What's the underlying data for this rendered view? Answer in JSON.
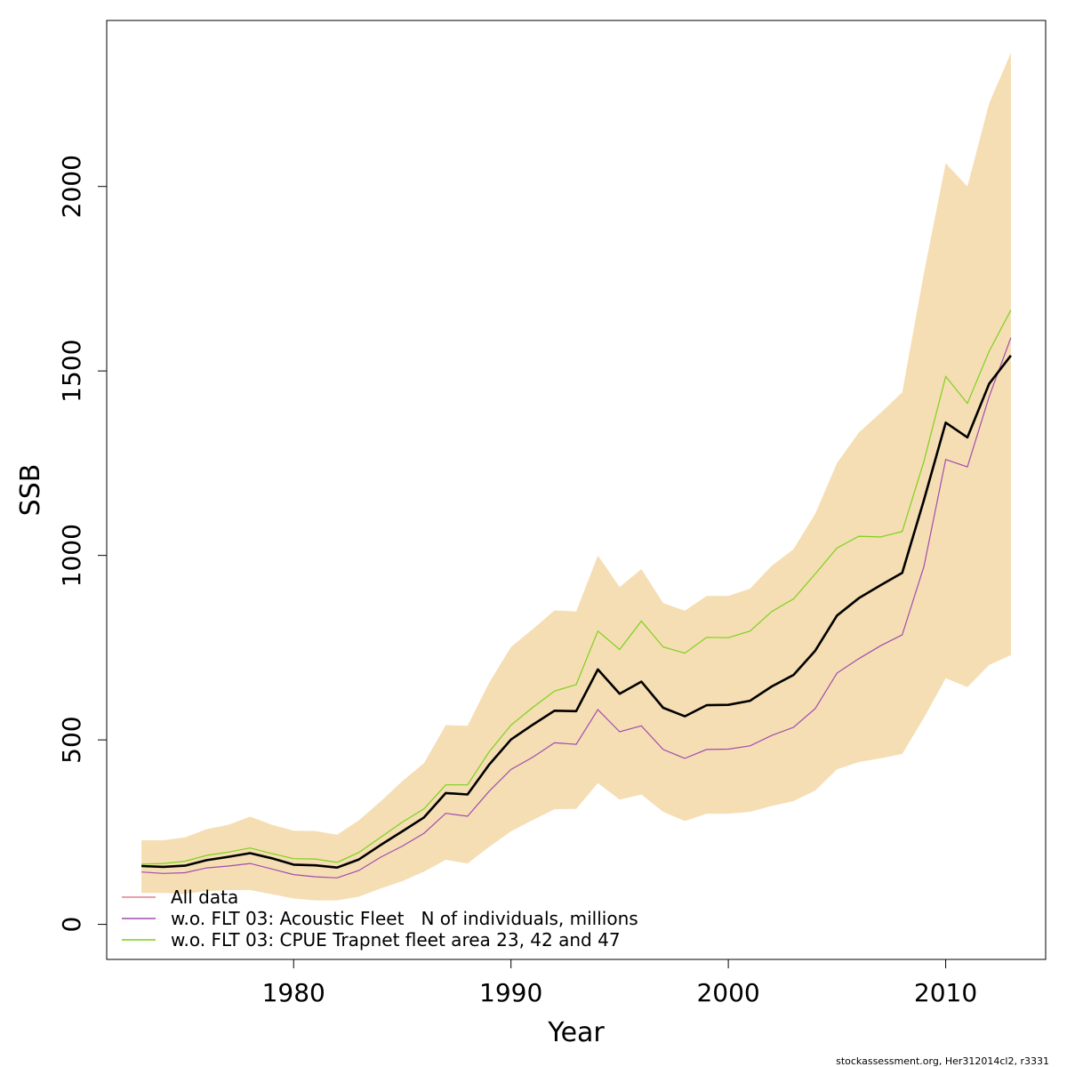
{
  "chart_data": {
    "type": "line",
    "xlabel": "Year",
    "ylabel": "SSB",
    "xlim": [
      1971.4,
      2014.6
    ],
    "ylim": [
      -95,
      2450
    ],
    "xticks": [
      1980,
      1990,
      2000,
      2010
    ],
    "yticks": [
      0,
      500,
      1000,
      1500,
      2000
    ],
    "grid": false,
    "legend_position": "bottom-left",
    "x": [
      1973,
      1974,
      1975,
      1976,
      1977,
      1978,
      1979,
      1980,
      1981,
      1982,
      1983,
      1984,
      1985,
      1986,
      1987,
      1988,
      1989,
      1990,
      1991,
      1992,
      1993,
      1994,
      1995,
      1996,
      1997,
      1998,
      1999,
      2000,
      2001,
      2002,
      2003,
      2004,
      2005,
      2006,
      2007,
      2008,
      2009,
      2010,
      2011,
      2012,
      2013
    ],
    "confidence_band": {
      "color": "#F5DEB3",
      "lower": [
        85,
        85,
        83,
        90,
        93,
        93,
        82,
        70,
        65,
        65,
        75,
        97,
        117,
        143,
        175,
        165,
        210,
        252,
        283,
        312,
        313,
        383,
        338,
        352,
        305,
        280,
        300,
        300,
        305,
        321,
        334,
        363,
        420,
        440,
        450,
        462,
        560,
        667,
        643,
        703,
        730
      ],
      "upper": [
        228,
        228,
        236,
        258,
        270,
        292,
        270,
        254,
        253,
        243,
        282,
        333,
        388,
        437,
        540,
        538,
        655,
        752,
        800,
        851,
        848,
        1000,
        914,
        963,
        871,
        850,
        890,
        890,
        910,
        972,
        1017,
        1113,
        1250,
        1333,
        1386,
        1442,
        1765,
        2063,
        2000,
        2225,
        2362
      ]
    },
    "main_line": {
      "color": "#000000",
      "values": [
        158,
        156,
        159,
        174,
        183,
        193,
        179,
        162,
        160,
        154,
        176,
        215,
        252,
        290,
        356,
        352,
        433,
        501,
        541,
        579,
        578,
        691,
        625,
        658,
        587,
        564,
        594,
        595,
        606,
        645,
        676,
        742,
        837,
        884,
        919,
        953,
        1150,
        1360,
        1320,
        1465,
        1542
      ]
    },
    "series": [
      {
        "name": "All data",
        "color": "#E4848B",
        "values": [
          158,
          156,
          159,
          174,
          183,
          193,
          179,
          162,
          160,
          154,
          176,
          215,
          252,
          290,
          356,
          352,
          433,
          501,
          541,
          579,
          578,
          691,
          625,
          658,
          587,
          564,
          594,
          595,
          606,
          645,
          676,
          742,
          837,
          884,
          919,
          953,
          1150,
          1360,
          1320,
          1465,
          1542
        ]
      },
      {
        "name": "w.o. FLT 03: Acoustic Fleet   N of individuals, millions",
        "color": "#A24CB0",
        "values": [
          142,
          138,
          140,
          153,
          158,
          165,
          150,
          135,
          129,
          126,
          146,
          182,
          212,
          247,
          301,
          293,
          361,
          420,
          453,
          492,
          488,
          582,
          522,
          538,
          474,
          450,
          474,
          475,
          484,
          512,
          534,
          585,
          681,
          720,
          755,
          785,
          970,
          1260,
          1240,
          1430,
          1590
        ]
      },
      {
        "name": "w.o. FLT 03: CPUE Trapnet fleet area 23, 42 and 47",
        "color": "#7DD11A",
        "values": [
          163,
          165,
          171,
          187,
          196,
          207,
          192,
          178,
          177,
          168,
          195,
          236,
          277,
          313,
          378,
          378,
          468,
          540,
          588,
          632,
          650,
          795,
          745,
          822,
          752,
          735,
          778,
          777,
          795,
          848,
          882,
          950,
          1020,
          1052,
          1050,
          1065,
          1255,
          1485,
          1412,
          1553,
          1665
        ]
      }
    ]
  },
  "credit": "stockassessment.org, Her312014cl2, r3331"
}
